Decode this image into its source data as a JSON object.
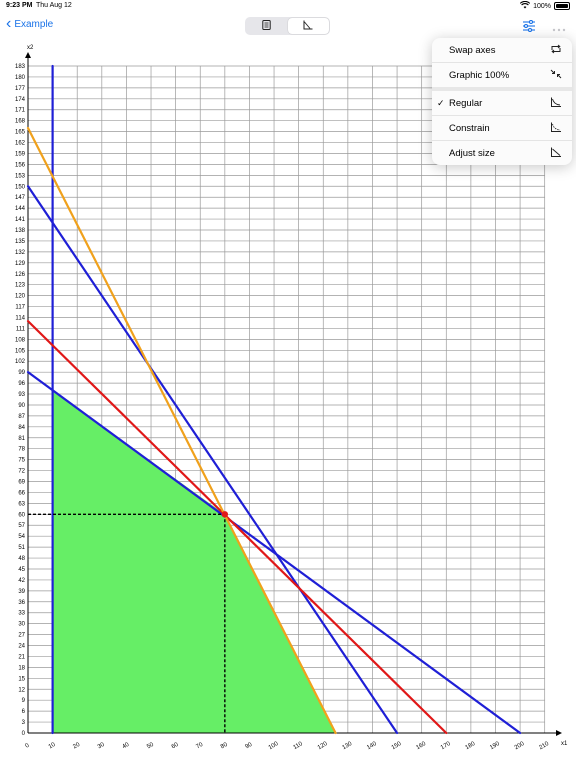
{
  "status_bar": {
    "time": "9:23 PM",
    "date": "Thu Aug 12",
    "battery": "100%"
  },
  "nav": {
    "back_label": "Example"
  },
  "menu": {
    "items": [
      {
        "label": "Swap axes",
        "checked": false,
        "icon": "swap-axes-icon"
      },
      {
        "label": "Graphic 100%",
        "checked": false,
        "icon": "shrink-arrows-icon"
      }
    ],
    "mode_items": [
      {
        "label": "Regular",
        "checked": true,
        "icon": "regular-axes-icon"
      },
      {
        "label": "Constrain",
        "checked": false,
        "icon": "constrain-axes-icon"
      },
      {
        "label": "Adjust size",
        "checked": false,
        "icon": "adjust-size-axes-icon"
      }
    ],
    "check_glyph": "✓"
  },
  "chart_data": {
    "type": "line",
    "xlabel": "x1",
    "ylabel": "x2",
    "xlim": [
      0,
      215
    ],
    "ylim": [
      0,
      183
    ],
    "x_ticks": [
      0,
      10,
      20,
      30,
      40,
      50,
      60,
      70,
      80,
      90,
      100,
      110,
      120,
      130,
      140,
      150,
      160,
      170,
      180,
      190,
      200,
      210
    ],
    "y_ticks": [
      0,
      3,
      6,
      9,
      12,
      15,
      18,
      21,
      24,
      27,
      30,
      33,
      36,
      39,
      42,
      45,
      48,
      51,
      54,
      57,
      60,
      63,
      66,
      69,
      72,
      75,
      78,
      81,
      84,
      87,
      90,
      93,
      96,
      99,
      102,
      105,
      108,
      111,
      114,
      117,
      120,
      123,
      126,
      129,
      132,
      135,
      138,
      141,
      144,
      147,
      150,
      153,
      156,
      159,
      162,
      165,
      168,
      171,
      174,
      177,
      180,
      183
    ],
    "grid": true,
    "series": [
      {
        "color": "#1f1fd6",
        "points": [
          [
            10,
            0
          ],
          [
            10,
            183
          ]
        ]
      },
      {
        "color": "#1f1fd6",
        "points": [
          [
            0,
            99
          ],
          [
            200,
            0
          ]
        ]
      },
      {
        "color": "#1f1fd6",
        "points": [
          [
            0,
            150
          ],
          [
            150,
            0
          ]
        ]
      },
      {
        "color": "#e01818",
        "points": [
          [
            0,
            113
          ],
          [
            170,
            0
          ]
        ]
      },
      {
        "color": "#f0a11c",
        "points": [
          [
            0,
            166
          ],
          [
            125,
            0
          ]
        ]
      }
    ],
    "feasible_region": {
      "color": "#66ee66",
      "points": [
        [
          10,
          0
        ],
        [
          10,
          94
        ],
        [
          80,
          60
        ],
        [
          125,
          0
        ]
      ]
    },
    "optimum": {
      "x": 80,
      "y": 60,
      "color": "#e01818"
    }
  }
}
